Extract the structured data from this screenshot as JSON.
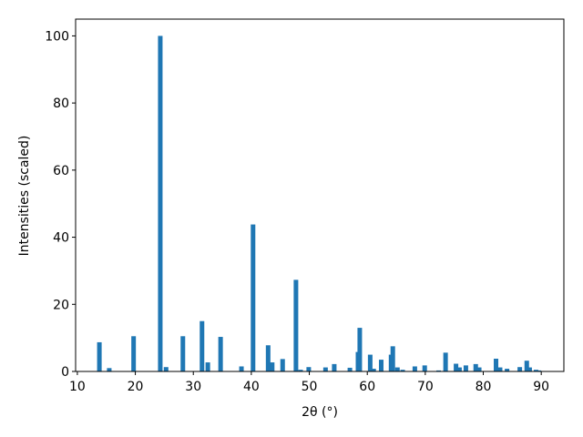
{
  "chart_data": {
    "type": "bar",
    "x_label": "2θ (°)",
    "y_label": "Intensities (scaled)",
    "x": [
      13.8,
      15.5,
      19.7,
      24.3,
      25.3,
      28.2,
      31.5,
      32.5,
      34.7,
      38.3,
      40.3,
      42.9,
      43.6,
      45.4,
      47.7,
      48.5,
      49.9,
      52.8,
      54.3,
      57.0,
      58.4,
      58.7,
      60.5,
      61.1,
      62.4,
      64.1,
      64.4,
      65.2,
      66.1,
      68.2,
      69.9,
      72.3,
      73.5,
      75.3,
      75.9,
      77.0,
      78.7,
      79.3,
      82.2,
      82.9,
      84.1,
      86.3,
      87.5,
      88.0,
      89.1,
      89.6
    ],
    "values": [
      8.7,
      1,
      10.5,
      100,
      1.3,
      10.5,
      15,
      2.7,
      10.3,
      1.5,
      43.8,
      7.8,
      2.7,
      3.7,
      27.3,
      0.5,
      1.3,
      1.2,
      2.2,
      1.1,
      5.8,
      13,
      5,
      0.8,
      3.5,
      5,
      7.5,
      1.2,
      0.5,
      1.5,
      1.8,
      0.3,
      5.6,
      2.3,
      1.2,
      1.8,
      2.2,
      1.2,
      3.8,
      1.2,
      0.8,
      1.3,
      3.2,
      1.2,
      0.5,
      0.3
    ],
    "color": "#1f77b4",
    "xlim": [
      9.7,
      93.9
    ],
    "xticks": [
      10,
      20,
      30,
      40,
      50,
      60,
      70,
      80,
      90
    ],
    "ylim": [
      0,
      105
    ],
    "yticks": [
      0,
      20,
      40,
      60,
      80,
      100
    ],
    "grid": false
  }
}
